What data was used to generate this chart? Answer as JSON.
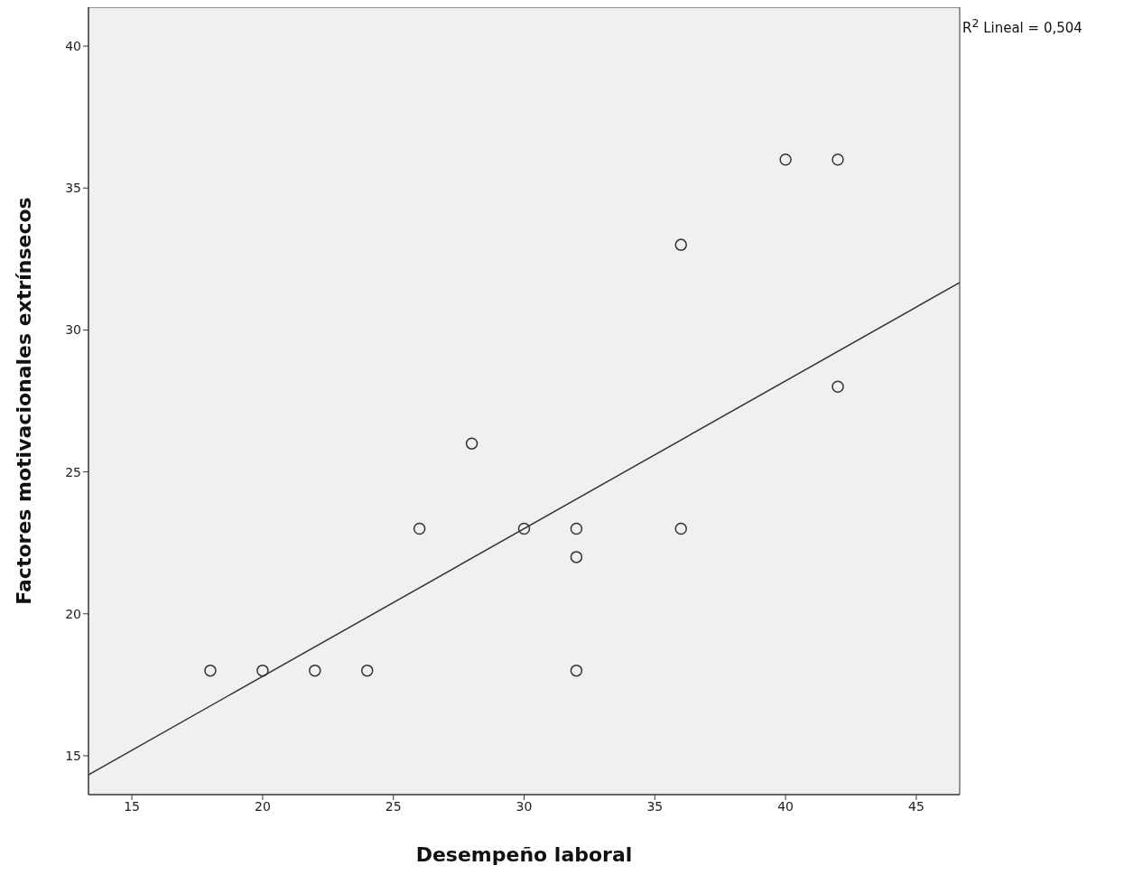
{
  "chart_data": {
    "type": "scatter",
    "xlabel": "Desempeño laboral",
    "ylabel": "Factores motivacionales extrínsecos",
    "annotations": [
      "R$^{2}$ Lineal = 0,504"
    ],
    "xlim": [
      13.34,
      46.66
    ],
    "xticks": [
      15,
      20,
      25,
      30,
      35,
      40,
      45
    ],
    "ylim": [
      13.63,
      41.37
    ],
    "yticks": [
      15,
      20,
      25,
      30,
      35,
      40
    ],
    "marker": "circle",
    "series": [
      {
        "color": "#333333",
        "x": [
          18,
          20,
          22,
          24,
          26,
          28,
          30,
          32,
          32,
          32,
          36,
          36,
          40,
          42,
          42
        ],
        "values": [
          18,
          18,
          18,
          18,
          23,
          26,
          23,
          23,
          22,
          18,
          23,
          33,
          36,
          36,
          28
        ]
      },
      {
        "type": "line",
        "color": "#333333",
        "marker": "none",
        "x": [
          13.34,
          46.66
        ],
        "values": [
          14.33,
          31.67
        ]
      }
    ]
  }
}
